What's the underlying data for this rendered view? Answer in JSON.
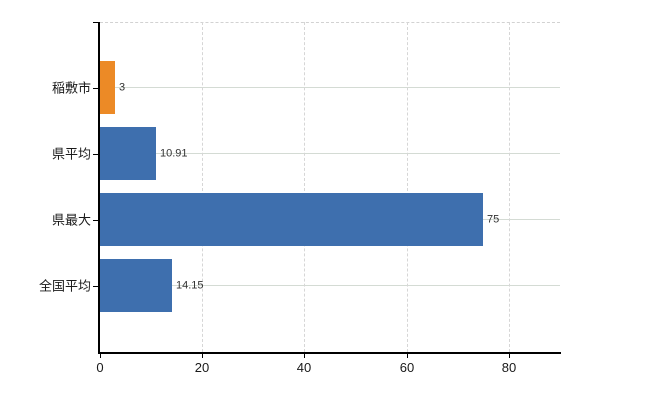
{
  "chart_data": {
    "type": "bar",
    "orientation": "horizontal",
    "title": "",
    "categories": [
      "稲敷市",
      "県平均",
      "県最大",
      "全国平均"
    ],
    "values": [
      3,
      10.91,
      75,
      14.15
    ],
    "value_labels": [
      "3",
      "10.91",
      "75",
      "14.15"
    ],
    "bar_colors": [
      "#ec8a26",
      "#3e6fae",
      "#3e6fae",
      "#3e6fae"
    ],
    "xlim": [
      0,
      90
    ],
    "x_tick_values": [
      0,
      20,
      40,
      60,
      80
    ],
    "x_tick_labels": [
      "0",
      "20",
      "40",
      "60",
      "80"
    ],
    "grid": {
      "vertical_style": "dashed",
      "horizontal_style": "solid",
      "top_border_style": "dashed"
    },
    "legend_position": "none",
    "background_color": "#ffffff"
  },
  "styles": {
    "axis_color": "#000000",
    "horizontal_gridline_color": "#d4dbd4",
    "vertical_gridline_color": "#d6d6d6",
    "top_border_color": "#d2d2d2",
    "category_label_color": "#1a1a1a",
    "value_label_color": "#333333",
    "tick_label_color": "#1a1a1a"
  }
}
